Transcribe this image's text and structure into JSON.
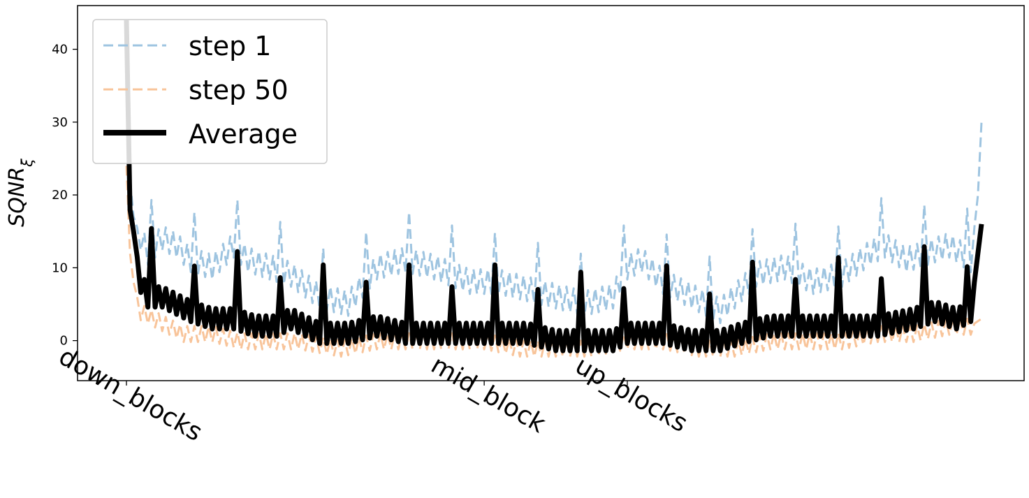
{
  "chart_data": {
    "type": "line",
    "title": "",
    "xlabel": "",
    "ylabel": "SQNR",
    "ylabel_subscript": "ξ",
    "ylim": [
      -5.5,
      46
    ],
    "yticks": [
      0,
      10,
      20,
      30,
      40
    ],
    "n_layers": 240,
    "xticks": [
      {
        "label": "down_blocks",
        "x": 0
      },
      {
        "label": "mid_block",
        "x": 100
      },
      {
        "label": "up_blocks",
        "x": 140
      }
    ],
    "xticks_rotation_deg": 30,
    "grid": false,
    "legend_position": "upper-left",
    "series": [
      {
        "name": "step 1",
        "color": "#9ec4e0",
        "style": "dashed",
        "anchors": [
          [
            0,
            42
          ],
          [
            1,
            22
          ],
          [
            2,
            17
          ],
          [
            4,
            14
          ],
          [
            6,
            12
          ],
          [
            10,
            14
          ],
          [
            14,
            13
          ],
          [
            18,
            11
          ],
          [
            24,
            10
          ],
          [
            30,
            13
          ],
          [
            34,
            11
          ],
          [
            40,
            10
          ],
          [
            46,
            9
          ],
          [
            54,
            6
          ],
          [
            62,
            5
          ],
          [
            70,
            10
          ],
          [
            78,
            11
          ],
          [
            86,
            10
          ],
          [
            96,
            8
          ],
          [
            104,
            8
          ],
          [
            112,
            7
          ],
          [
            120,
            6
          ],
          [
            128,
            5
          ],
          [
            136,
            6
          ],
          [
            140,
            10
          ],
          [
            144,
            11
          ],
          [
            150,
            8
          ],
          [
            158,
            6
          ],
          [
            166,
            4
          ],
          [
            170,
            6
          ],
          [
            176,
            9
          ],
          [
            184,
            10
          ],
          [
            192,
            8
          ],
          [
            200,
            9
          ],
          [
            208,
            12
          ],
          [
            212,
            13
          ],
          [
            218,
            11
          ],
          [
            224,
            12
          ],
          [
            230,
            13
          ],
          [
            236,
            11
          ],
          [
            238,
            20
          ],
          [
            239,
            30
          ]
        ]
      },
      {
        "name": "step 50",
        "color": "#f8c49a",
        "style": "dashed",
        "anchors": [
          [
            0,
            24
          ],
          [
            1,
            12
          ],
          [
            2,
            8
          ],
          [
            4,
            4
          ],
          [
            8,
            3
          ],
          [
            12,
            2
          ],
          [
            16,
            1
          ],
          [
            24,
            1
          ],
          [
            32,
            0
          ],
          [
            40,
            0
          ],
          [
            48,
            0
          ],
          [
            60,
            -1
          ],
          [
            70,
            0
          ],
          [
            80,
            0
          ],
          [
            90,
            0
          ],
          [
            100,
            0
          ],
          [
            110,
            -1
          ],
          [
            120,
            -1
          ],
          [
            130,
            -1
          ],
          [
            140,
            0
          ],
          [
            150,
            0
          ],
          [
            160,
            -1
          ],
          [
            170,
            -1
          ],
          [
            180,
            0
          ],
          [
            190,
            0
          ],
          [
            200,
            0
          ],
          [
            210,
            1
          ],
          [
            220,
            1
          ],
          [
            230,
            2
          ],
          [
            236,
            2
          ],
          [
            239,
            3
          ]
        ]
      },
      {
        "name": "Average",
        "color": "#000000",
        "style": "solid",
        "anchors": [
          [
            0,
            44
          ],
          [
            1,
            18
          ],
          [
            2,
            15
          ],
          [
            4,
            8
          ],
          [
            6,
            6
          ],
          [
            10,
            6
          ],
          [
            14,
            5
          ],
          [
            18,
            4
          ],
          [
            24,
            3
          ],
          [
            30,
            3
          ],
          [
            36,
            2
          ],
          [
            42,
            2
          ],
          [
            46,
            3
          ],
          [
            54,
            1
          ],
          [
            62,
            1
          ],
          [
            70,
            2
          ],
          [
            78,
            1
          ],
          [
            86,
            1
          ],
          [
            96,
            1
          ],
          [
            104,
            1
          ],
          [
            112,
            1
          ],
          [
            120,
            0
          ],
          [
            128,
            0
          ],
          [
            136,
            0
          ],
          [
            140,
            1
          ],
          [
            144,
            1
          ],
          [
            150,
            1
          ],
          [
            158,
            0
          ],
          [
            166,
            0
          ],
          [
            172,
            1
          ],
          [
            180,
            2
          ],
          [
            190,
            2
          ],
          [
            200,
            2
          ],
          [
            210,
            2
          ],
          [
            220,
            3
          ],
          [
            226,
            4
          ],
          [
            232,
            3
          ],
          [
            236,
            4
          ],
          [
            238,
            12
          ],
          [
            239,
            16
          ]
        ]
      }
    ]
  }
}
